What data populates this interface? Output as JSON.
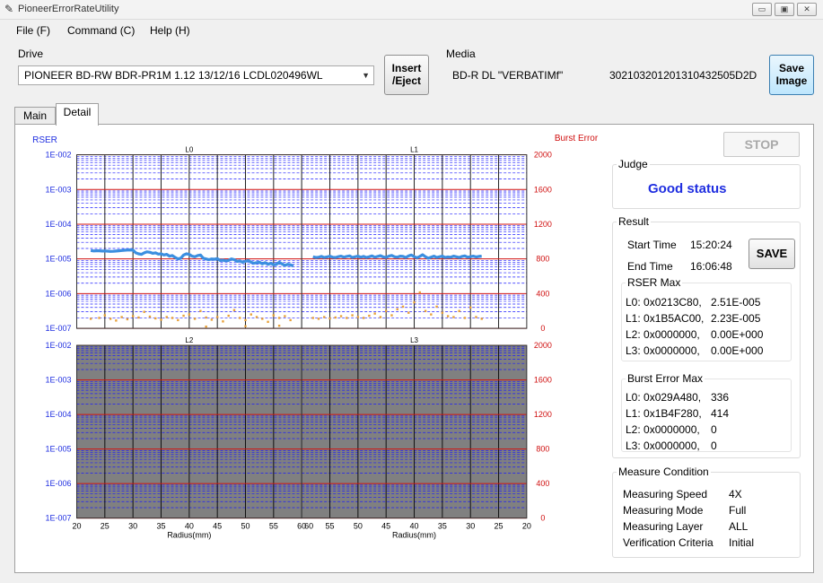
{
  "window": {
    "title": "PioneerErrorRateUtility",
    "min_label": "▭",
    "max_label": "▣",
    "close_label": "✕"
  },
  "menu": [
    "File (F)",
    "Command (C)",
    "Help (H)"
  ],
  "drive": {
    "group_label": "Drive",
    "selected": "PIONEER BD-RW BDR-PR1M  1.12 13/12/16  LCDL020496WL"
  },
  "insert_eject": {
    "line1": "Insert",
    "line2": "/Eject"
  },
  "media": {
    "group_label": "Media",
    "type": "BD-R DL \"VERBATIMf\"",
    "id": "302103201201310432505D2D"
  },
  "save_image": {
    "line1": "Save",
    "line2": "Image"
  },
  "tabs": [
    {
      "label": "Main",
      "active": false
    },
    {
      "label": "Detail",
      "active": true
    }
  ],
  "stop_label": "STOP",
  "judge": {
    "label": "Judge",
    "status": "Good status"
  },
  "result": {
    "label": "Result",
    "start_label": "Start Time",
    "start_value": "15:20:24",
    "end_label": "End Time",
    "end_value": "16:06:48",
    "save_label": "SAVE",
    "rser_max_label": "RSER Max",
    "rser_max": [
      {
        "addr": "L0: 0x0213C80,",
        "value": "2.51E-005"
      },
      {
        "addr": "L1: 0x1B5AC00,",
        "value": "2.23E-005"
      },
      {
        "addr": "L2: 0x0000000,",
        "value": "0.00E+000"
      },
      {
        "addr": "L3: 0x0000000,",
        "value": "0.00E+000"
      }
    ],
    "burst_max_label": "Burst Error Max",
    "burst_max": [
      {
        "addr": "L0: 0x029A480,",
        "value": "336"
      },
      {
        "addr": "L1: 0x1B4F280,",
        "value": "414"
      },
      {
        "addr": "L2: 0x0000000,",
        "value": "0"
      },
      {
        "addr": "L3: 0x0000000,",
        "value": "0"
      }
    ]
  },
  "measure": {
    "label": "Measure Condition",
    "rows": [
      {
        "name": "Measuring Speed",
        "value": "4X"
      },
      {
        "name": "Measuring Mode",
        "value": "Full"
      },
      {
        "name": "Measuring Layer",
        "value": "ALL"
      },
      {
        "name": "Verification Criteria",
        "value": "Initial"
      }
    ]
  },
  "colors": {
    "rser_line": "#3b8fe0",
    "burst_points": "#e8a13a",
    "major_grid": "#d01010",
    "minor_grid": "#1a1aff",
    "inactive_bg": "#808080",
    "left_axis_label": "#1f2ee0",
    "right_axis_label": "#d01010"
  },
  "chart_data": {
    "type": "line",
    "left_axis_label": "RSER",
    "right_axis_label": "Burst Error",
    "rser_ticks": [
      "1E-002",
      "1E-003",
      "1E-004",
      "1E-005",
      "1E-006",
      "1E-007"
    ],
    "burst_ticks": [
      "2000",
      "1600",
      "1200",
      "800",
      "400",
      "0"
    ],
    "x_ticks_left": [
      "20",
      "25",
      "30",
      "35",
      "40",
      "45",
      "50",
      "55",
      "60"
    ],
    "x_ticks_right": [
      "60",
      "55",
      "50",
      "45",
      "40",
      "35",
      "30",
      "25",
      "20"
    ],
    "xlabel": "Radius(mm)",
    "panels": [
      {
        "title": "L0",
        "direction": "left",
        "active": true,
        "rser_series": [
          [
            22.5,
            1.75e-05
          ],
          [
            23.0,
            1.7e-05
          ],
          [
            23.5,
            1.72e-05
          ],
          [
            24.0,
            1.72e-05
          ],
          [
            24.5,
            1.69e-05
          ],
          [
            25.0,
            1.7e-05
          ],
          [
            25.5,
            1.68e-05
          ],
          [
            26.0,
            1.65e-05
          ],
          [
            26.5,
            1.66e-05
          ],
          [
            27.0,
            1.69e-05
          ],
          [
            27.5,
            1.72e-05
          ],
          [
            28.0,
            1.75e-05
          ],
          [
            28.5,
            1.78e-05
          ],
          [
            29.0,
            1.8e-05
          ],
          [
            29.5,
            1.82e-05
          ],
          [
            30.0,
            1.79e-05
          ],
          [
            30.5,
            1.5e-05
          ],
          [
            31.0,
            1.4e-05
          ],
          [
            31.5,
            1.35e-05
          ],
          [
            32.0,
            1.5e-05
          ],
          [
            32.5,
            1.6e-05
          ],
          [
            33.0,
            1.55e-05
          ],
          [
            33.5,
            1.45e-05
          ],
          [
            34.0,
            1.5e-05
          ],
          [
            34.5,
            1.38e-05
          ],
          [
            35.0,
            1.4e-05
          ],
          [
            35.5,
            1.3e-05
          ],
          [
            36.0,
            1.35e-05
          ],
          [
            36.5,
            1.2e-05
          ],
          [
            37.0,
            1.25e-05
          ],
          [
            37.5,
            1.1e-05
          ],
          [
            38.0,
            1e-05
          ],
          [
            38.5,
            1.05e-05
          ],
          [
            39.0,
            1.3e-05
          ],
          [
            39.5,
            1.4e-05
          ],
          [
            40.0,
            1.35e-05
          ],
          [
            40.5,
            1.2e-05
          ],
          [
            41.0,
            1.15e-05
          ],
          [
            41.5,
            1.25e-05
          ],
          [
            42.0,
            1.3e-05
          ],
          [
            42.5,
            1.05e-05
          ],
          [
            43.0,
            1e-05
          ],
          [
            43.5,
            9.5e-06
          ],
          [
            44.0,
            1e-05
          ],
          [
            44.5,
            9.8e-06
          ],
          [
            45.0,
            1.02e-05
          ],
          [
            45.5,
            9e-06
          ],
          [
            46.0,
            9.2e-06
          ],
          [
            46.5,
            8.8e-06
          ],
          [
            47.0,
            9e-06
          ],
          [
            47.5,
            1e-05
          ],
          [
            48.0,
            9.5e-06
          ],
          [
            48.5,
            8.5e-06
          ],
          [
            49.0,
            8.8e-06
          ],
          [
            49.5,
            8e-06
          ],
          [
            50.0,
            8.5e-06
          ],
          [
            50.5,
            9e-06
          ],
          [
            51.0,
            8e-06
          ],
          [
            51.5,
            7.5e-06
          ],
          [
            52.0,
            7.8e-06
          ],
          [
            52.5,
            8e-06
          ],
          [
            53.0,
            7.2e-06
          ],
          [
            53.5,
            7.8e-06
          ],
          [
            54.0,
            7e-06
          ],
          [
            54.5,
            7.5e-06
          ],
          [
            55.0,
            6.8e-06
          ],
          [
            55.5,
            7e-06
          ],
          [
            56.0,
            8e-06
          ],
          [
            56.5,
            7.2e-06
          ],
          [
            57.0,
            6.5e-06
          ],
          [
            57.5,
            7e-06
          ],
          [
            58.0,
            6.8e-06
          ],
          [
            58.5,
            6.2e-06
          ]
        ],
        "burst_points": [
          [
            22.5,
            110
          ],
          [
            24,
            120
          ],
          [
            25,
            150
          ],
          [
            26,
            110
          ],
          [
            27,
            90
          ],
          [
            28,
            130
          ],
          [
            29,
            105
          ],
          [
            30,
            140
          ],
          [
            31,
            125
          ],
          [
            32,
            190
          ],
          [
            33,
            135
          ],
          [
            34,
            115
          ],
          [
            35,
            100
          ],
          [
            36,
            130
          ],
          [
            37,
            120
          ],
          [
            38,
            95
          ],
          [
            39,
            145
          ],
          [
            40,
            160
          ],
          [
            41,
            110
          ],
          [
            42,
            200
          ],
          [
            43,
            125
          ],
          [
            44,
            100
          ],
          [
            45,
            130
          ],
          [
            46,
            80
          ],
          [
            47,
            145
          ],
          [
            48,
            210
          ],
          [
            49,
            120
          ],
          [
            50,
            95
          ],
          [
            51,
            160
          ],
          [
            52,
            130
          ],
          [
            53,
            110
          ],
          [
            54,
            75
          ],
          [
            55,
            150
          ],
          [
            56,
            120
          ],
          [
            57,
            140
          ],
          [
            58,
            95
          ],
          [
            43,
            20
          ],
          [
            50,
            25
          ],
          [
            56,
            30
          ]
        ]
      },
      {
        "title": "L1",
        "direction": "right",
        "active": true,
        "rser_series": [
          [
            58.0,
            1.15e-05
          ],
          [
            57.5,
            1.1e-05
          ],
          [
            57.0,
            1.12e-05
          ],
          [
            56.5,
            1.18e-05
          ],
          [
            56.0,
            1.1e-05
          ],
          [
            55.5,
            1.14e-05
          ],
          [
            55.0,
            1.2e-05
          ],
          [
            54.5,
            1.12e-05
          ],
          [
            54.0,
            1.1e-05
          ],
          [
            53.5,
            1.16e-05
          ],
          [
            53.0,
            1.2e-05
          ],
          [
            52.5,
            1.12e-05
          ],
          [
            52.0,
            1.18e-05
          ],
          [
            51.5,
            1.22e-05
          ],
          [
            51.0,
            1.1e-05
          ],
          [
            50.5,
            1.15e-05
          ],
          [
            50.0,
            1.2e-05
          ],
          [
            49.5,
            1.12e-05
          ],
          [
            49.0,
            1.18e-05
          ],
          [
            48.5,
            1.1e-05
          ],
          [
            48.0,
            1.15e-05
          ],
          [
            47.5,
            1.22e-05
          ],
          [
            47.0,
            1.12e-05
          ],
          [
            46.5,
            1.18e-05
          ],
          [
            46.0,
            1.24e-05
          ],
          [
            45.5,
            1.14e-05
          ],
          [
            45.0,
            1.1e-05
          ],
          [
            44.5,
            1.2e-05
          ],
          [
            44.0,
            1.26e-05
          ],
          [
            43.5,
            1.15e-05
          ],
          [
            43.0,
            1.12e-05
          ],
          [
            42.5,
            1.2e-05
          ],
          [
            42.0,
            1.18e-05
          ],
          [
            41.5,
            1.1e-05
          ],
          [
            41.0,
            1.22e-05
          ],
          [
            40.5,
            1.3e-05
          ],
          [
            40.0,
            1.15e-05
          ],
          [
            39.5,
            1.08e-05
          ],
          [
            39.0,
            1.18e-05
          ],
          [
            38.5,
            1.32e-05
          ],
          [
            38.0,
            1.15e-05
          ],
          [
            37.5,
            1.05e-05
          ],
          [
            37.0,
            1.12e-05
          ],
          [
            36.5,
            1.2e-05
          ],
          [
            36.0,
            1.1e-05
          ],
          [
            35.5,
            1.15e-05
          ],
          [
            35.0,
            1.2e-05
          ],
          [
            34.5,
            1.1e-05
          ],
          [
            34.0,
            1.14e-05
          ],
          [
            33.5,
            1.12e-05
          ],
          [
            33.0,
            1.2e-05
          ],
          [
            32.5,
            1.15e-05
          ],
          [
            32.0,
            1.1e-05
          ],
          [
            31.5,
            1.18e-05
          ],
          [
            31.0,
            1.22e-05
          ],
          [
            30.5,
            1.12e-05
          ],
          [
            30.0,
            1.16e-05
          ],
          [
            29.5,
            1.2e-05
          ],
          [
            29.0,
            1.14e-05
          ],
          [
            28.5,
            1.18e-05
          ],
          [
            28.0,
            1.2e-05
          ]
        ],
        "burst_points": [
          [
            58,
            120
          ],
          [
            57,
            110
          ],
          [
            56,
            130
          ],
          [
            55,
            115
          ],
          [
            54,
            125
          ],
          [
            53,
            140
          ],
          [
            52,
            120
          ],
          [
            51,
            150
          ],
          [
            50,
            130
          ],
          [
            49,
            120
          ],
          [
            48,
            145
          ],
          [
            47,
            170
          ],
          [
            46,
            130
          ],
          [
            45,
            200
          ],
          [
            44,
            150
          ],
          [
            43,
            220
          ],
          [
            42,
            250
          ],
          [
            41,
            180
          ],
          [
            40,
            300
          ],
          [
            39,
            414
          ],
          [
            38,
            200
          ],
          [
            37,
            160
          ],
          [
            36,
            250
          ],
          [
            35,
            180
          ],
          [
            34,
            140
          ],
          [
            33,
            130
          ],
          [
            32,
            200
          ],
          [
            31,
            120
          ],
          [
            30,
            240
          ],
          [
            29,
            130
          ],
          [
            28,
            110
          ]
        ]
      },
      {
        "title": "L2",
        "direction": "left",
        "active": false,
        "rser_series": [],
        "burst_points": []
      },
      {
        "title": "L3",
        "direction": "right",
        "active": false,
        "rser_series": [],
        "burst_points": []
      }
    ]
  }
}
